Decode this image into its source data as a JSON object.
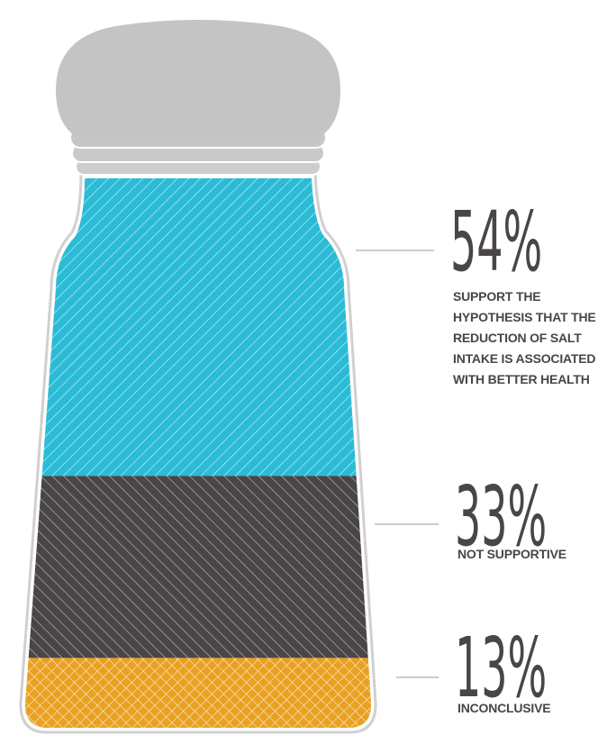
{
  "chart_data": {
    "type": "pictorial-stack",
    "categories": [
      "SUPPORT THE HYPOTHESIS THAT THE REDUCTION OF SALT INTAKE IS ASSOCIATED WITH BETTER HEALTH",
      "NOT SUPPORTIVE",
      "INCONCLUSIVE"
    ],
    "values": [
      54,
      33,
      13
    ],
    "value_labels": [
      "54%",
      "33%",
      "13%"
    ],
    "colors": [
      "#2bbbd6",
      "#4a4546",
      "#e9a122"
    ]
  }
}
